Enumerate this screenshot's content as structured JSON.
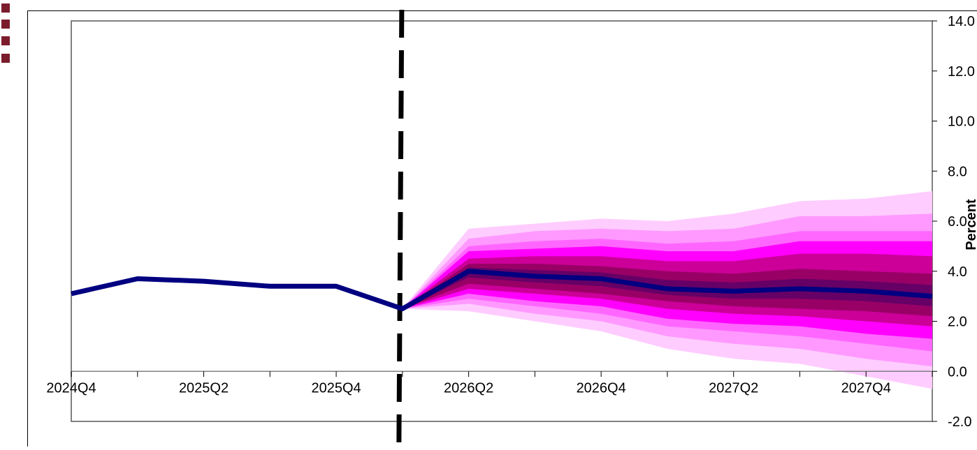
{
  "colors": {
    "central_line": "#000080",
    "forecast_divider": "#000000",
    "axis": "#808080",
    "frame": "#000000",
    "legend_swatch": "#7b1c2c",
    "fan_bands": [
      "#ffccff",
      "#ff99ff",
      "#ff66ff",
      "#ff00ff",
      "#cc0099",
      "#990066",
      "#660066"
    ]
  },
  "legend": {
    "swatch_count": 4
  },
  "chart_data": {
    "type": "line",
    "subtype": "fan_chart",
    "title": "",
    "xlabel": "",
    "ylabel": "Percent",
    "ylim": [
      -2.0,
      14.0
    ],
    "y_axis_side": "right",
    "y_ticks": [
      "-2.0",
      "0.0",
      "2.0",
      "4.0",
      "6.0",
      "8.0",
      "10.0",
      "12.0",
      "14.0"
    ],
    "y_tick_values": [
      -2,
      0,
      2,
      4,
      6,
      8,
      10,
      12,
      14
    ],
    "periods": [
      "2024Q4",
      "2025Q1",
      "2025Q2",
      "2025Q3",
      "2025Q4",
      "2026Q1",
      "2026Q2",
      "2026Q3",
      "2026Q4",
      "2027Q1",
      "2027Q2",
      "2027Q3",
      "2027Q4",
      "2028Q1"
    ],
    "x_tick_labels": [
      "2024Q4",
      "",
      "2025Q2",
      "",
      "2025Q4",
      "",
      "2026Q2",
      "",
      "2026Q4",
      "",
      "2027Q2",
      "",
      "2027Q4",
      ""
    ],
    "forecast_start": "2026Q1",
    "series": [
      {
        "values": [
          3.1,
          3.7,
          3.6,
          3.4,
          3.4,
          2.5,
          4.0,
          3.8,
          3.7,
          3.3,
          3.2,
          3.3,
          3.2,
          3.0
        ]
      }
    ],
    "fan_bands_upper": [
      [
        2.5,
        5.7,
        5.9,
        6.1,
        6.0,
        6.3,
        6.8,
        6.9,
        7.2
      ],
      [
        2.5,
        5.3,
        5.6,
        5.7,
        5.6,
        5.7,
        6.2,
        6.2,
        6.3
      ],
      [
        2.5,
        5.0,
        5.2,
        5.3,
        5.1,
        5.2,
        5.6,
        5.6,
        5.6
      ],
      [
        2.5,
        4.8,
        4.9,
        5.0,
        4.8,
        4.8,
        5.2,
        5.2,
        5.2
      ],
      [
        2.5,
        4.5,
        4.6,
        4.6,
        4.4,
        4.4,
        4.7,
        4.7,
        4.6
      ],
      [
        2.5,
        4.3,
        4.3,
        4.2,
        4.0,
        3.9,
        4.1,
        4.0,
        3.9
      ]
    ],
    "fan_bands_lower": [
      [
        2.5,
        2.4,
        2.0,
        1.6,
        0.9,
        0.5,
        0.3,
        -0.2,
        -0.7
      ],
      [
        2.5,
        2.7,
        2.3,
        2.0,
        1.4,
        1.1,
        0.9,
        0.5,
        0.2
      ],
      [
        2.5,
        2.9,
        2.6,
        2.3,
        1.8,
        1.6,
        1.4,
        1.1,
        0.8
      ],
      [
        2.5,
        3.1,
        2.8,
        2.6,
        2.1,
        1.9,
        1.8,
        1.5,
        1.3
      ],
      [
        2.5,
        3.3,
        3.1,
        2.9,
        2.5,
        2.3,
        2.2,
        2.0,
        1.8
      ],
      [
        2.5,
        3.5,
        3.3,
        3.1,
        2.8,
        2.6,
        2.5,
        2.4,
        2.2
      ]
    ],
    "fan_band_periods": [
      "2026Q1",
      "2026Q2",
      "2026Q3",
      "2026Q4",
      "2027Q1",
      "2027Q2",
      "2027Q3",
      "2027Q4",
      "2028Q1"
    ],
    "grid": false,
    "legend_position": "left"
  }
}
